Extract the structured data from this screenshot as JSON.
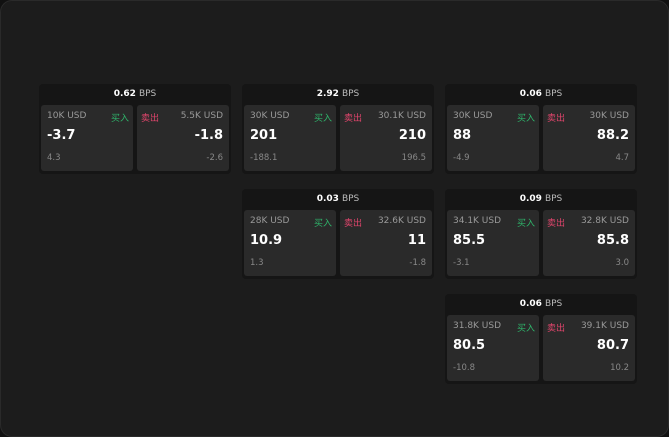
{
  "unit": "BPS",
  "buy_label": "买入",
  "sell_label": "卖出",
  "colors": {
    "buy": "#2fb36a",
    "sell": "#e0456c"
  },
  "tiles": [
    {
      "spread": "0.62",
      "buy": {
        "qty": "10K USD",
        "price": "-3.7",
        "sub": "4.3"
      },
      "sell": {
        "qty": "5.5K USD",
        "price": "-1.8",
        "sub": "-2.6"
      }
    },
    {
      "spread": "2.92",
      "buy": {
        "qty": "30K USD",
        "price": "201",
        "sub": "-188.1"
      },
      "sell": {
        "qty": "30.1K USD",
        "price": "210",
        "sub": "196.5"
      }
    },
    {
      "spread": "0.06",
      "buy": {
        "qty": "30K USD",
        "price": "88",
        "sub": "-4.9"
      },
      "sell": {
        "qty": "30K USD",
        "price": "88.2",
        "sub": "4.7"
      }
    },
    {
      "spread": "0.03",
      "buy": {
        "qty": "28K USD",
        "price": "10.9",
        "sub": "1.3"
      },
      "sell": {
        "qty": "32.6K USD",
        "price": "11",
        "sub": "-1.8"
      }
    },
    {
      "spread": "0.09",
      "buy": {
        "qty": "34.1K USD",
        "price": "85.5",
        "sub": "-3.1"
      },
      "sell": {
        "qty": "32.8K USD",
        "price": "85.8",
        "sub": "3.0"
      }
    },
    {
      "spread": "0.06",
      "buy": {
        "qty": "31.8K USD",
        "price": "80.5",
        "sub": "-10.8"
      },
      "sell": {
        "qty": "39.1K USD",
        "price": "80.7",
        "sub": "10.2"
      }
    }
  ]
}
